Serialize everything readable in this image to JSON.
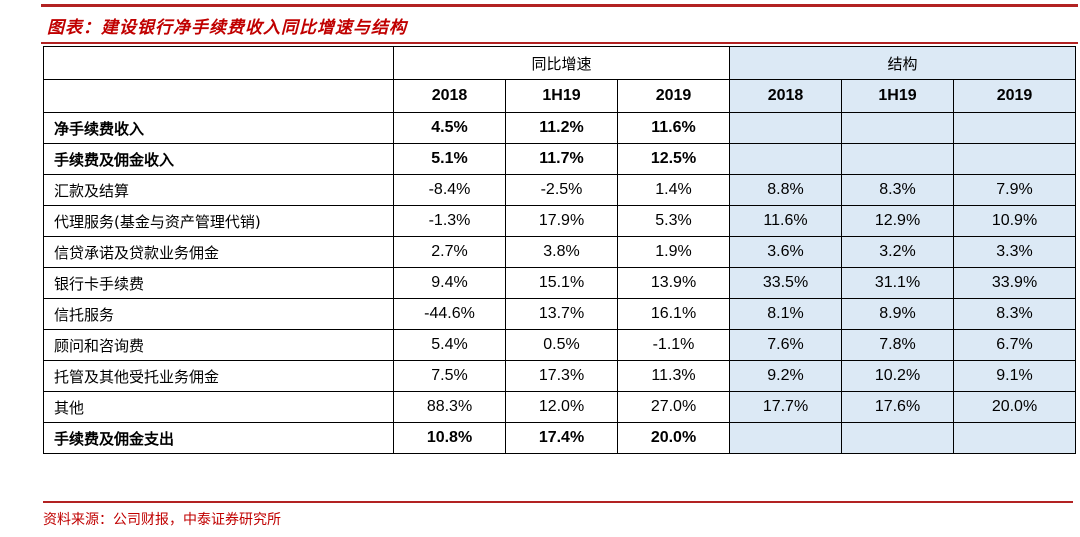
{
  "title": "图表：建设银行净手续费收入同比增速与结构",
  "group_headers": {
    "growth": "同比增速",
    "structure": "结构"
  },
  "year_headers": [
    "2018",
    "1H19",
    "2019",
    "2018",
    "1H19",
    "2019"
  ],
  "rows": [
    {
      "label": "净手续费收入",
      "bold": true,
      "growth": [
        "4.5%",
        "11.2%",
        "11.6%"
      ],
      "structure": [
        "",
        "",
        ""
      ]
    },
    {
      "label": "手续费及佣金收入",
      "bold": true,
      "growth": [
        "5.1%",
        "11.7%",
        "12.5%"
      ],
      "structure": [
        "",
        "",
        ""
      ]
    },
    {
      "label": "汇款及结算",
      "bold": false,
      "growth": [
        "-8.4%",
        "-2.5%",
        "1.4%"
      ],
      "structure": [
        "8.8%",
        "8.3%",
        "7.9%"
      ]
    },
    {
      "label": "代理服务(基金与资产管理代销)",
      "bold": false,
      "growth": [
        "-1.3%",
        "17.9%",
        "5.3%"
      ],
      "structure": [
        "11.6%",
        "12.9%",
        "10.9%"
      ]
    },
    {
      "label": "信贷承诺及贷款业务佣金",
      "bold": false,
      "growth": [
        "2.7%",
        "3.8%",
        "1.9%"
      ],
      "structure": [
        "3.6%",
        "3.2%",
        "3.3%"
      ]
    },
    {
      "label": "银行卡手续费",
      "bold": false,
      "growth": [
        "9.4%",
        "15.1%",
        "13.9%"
      ],
      "structure": [
        "33.5%",
        "31.1%",
        "33.9%"
      ]
    },
    {
      "label": "信托服务",
      "bold": false,
      "growth": [
        "-44.6%",
        "13.7%",
        "16.1%"
      ],
      "structure": [
        "8.1%",
        "8.9%",
        "8.3%"
      ]
    },
    {
      "label": "顾问和咨询费",
      "bold": false,
      "growth": [
        "5.4%",
        "0.5%",
        "-1.1%"
      ],
      "structure": [
        "7.6%",
        "7.8%",
        "6.7%"
      ]
    },
    {
      "label": "托管及其他受托业务佣金",
      "bold": false,
      "growth": [
        "7.5%",
        "17.3%",
        "11.3%"
      ],
      "structure": [
        "9.2%",
        "10.2%",
        "9.1%"
      ]
    },
    {
      "label": "其他",
      "bold": false,
      "growth": [
        "88.3%",
        "12.0%",
        "27.0%"
      ],
      "structure": [
        "17.7%",
        "17.6%",
        "20.0%"
      ]
    },
    {
      "label": "手续费及佣金支出",
      "bold": true,
      "growth": [
        "10.8%",
        "17.4%",
        "20.0%"
      ],
      "structure": [
        "",
        "",
        ""
      ]
    }
  ],
  "source": "资料来源：公司财报，中泰证券研究所",
  "colors": {
    "accent_red": "#c00000",
    "structure_fill": "#dce9f5"
  }
}
